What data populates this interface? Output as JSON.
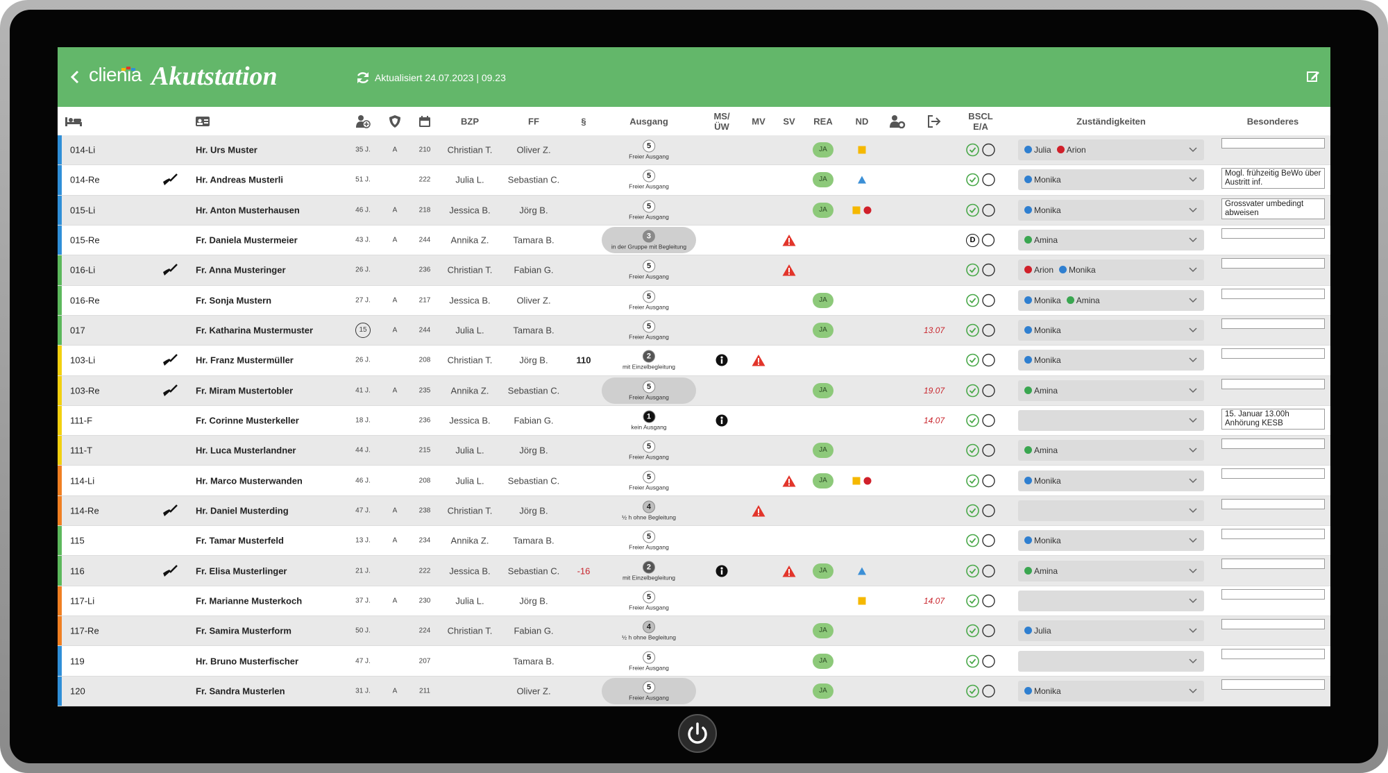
{
  "header": {
    "logo": "clienia",
    "title": "Akutstation",
    "updated": "Aktualisiert 24.07.2023 | 09.23"
  },
  "columns": {
    "bzp": "BZP",
    "ff": "FF",
    "para": "§",
    "ausgang": "Ausgang",
    "ms": "MS/\nÜW",
    "mv": "MV",
    "sv": "SV",
    "rea": "REA",
    "nd": "ND",
    "bscl": "BSCL\nE/A",
    "resp": "Zuständigkeiten",
    "note": "Besonderes"
  },
  "rows": [
    {
      "stripe": "#2f8fd8",
      "bed": "014-Li",
      "name": "Hr. Urs Muster",
      "age": "35 J.",
      "a": "A",
      "room": 210,
      "bzp": "Christian T.",
      "ff": "Oliver Z.",
      "ausgang": {
        "level": 5,
        "text": "Freier Ausgang"
      },
      "rea": "JA",
      "nd": [
        "square"
      ],
      "resp": [
        {
          "name": "Julia",
          "color": "#2f7fd0"
        },
        {
          "name": "Arion",
          "color": "#d0202a"
        }
      ]
    },
    {
      "stripe": "#2f8fd8",
      "bed": "014-Re",
      "sweep": true,
      "name": "Hr. Andreas Musterli",
      "age": "51 J.",
      "room": 222,
      "bzp": "Julia L.",
      "ff": "Sebastian C.",
      "ausgang": {
        "level": 5,
        "text": "Freier Ausgang"
      },
      "rea": "JA",
      "nd": [
        "triangle"
      ],
      "resp": [
        {
          "name": "Monika",
          "color": "#2f7fd0"
        }
      ],
      "note": "Mogl. frühzeitig BeWo über Austritt inf."
    },
    {
      "stripe": "#2f8fd8",
      "bed": "015-Li",
      "name": "Hr. Anton Musterhausen",
      "age": "46 J.",
      "a": "A",
      "room": 218,
      "bzp": "Jessica B.",
      "ff": "Jörg B.",
      "ausgang": {
        "level": 5,
        "text": "Freier Ausgang"
      },
      "rea": "JA",
      "nd": [
        "square",
        "circle"
      ],
      "resp": [
        {
          "name": "Monika",
          "color": "#2f7fd0"
        }
      ],
      "note": "Grossvater umbedingt abweisen"
    },
    {
      "stripe": "#2f8fd8",
      "bed": "015-Re",
      "name": "Fr. Daniela Mustermeier",
      "age": "43 J.",
      "a": "A",
      "room": 244,
      "bzp": "Annika Z.",
      "ff": "Tamara B.",
      "ausgang": {
        "level": 3,
        "text": "in der Gruppe mit Begleitung",
        "highlight": true
      },
      "sv": true,
      "bscl": "D",
      "resp": [
        {
          "name": "Amina",
          "color": "#3aa650"
        }
      ]
    },
    {
      "stripe": "#5cb85c",
      "bed": "016-Li",
      "sweep": true,
      "name": "Fr. Anna Musteringer",
      "age": "26 J.",
      "room": 236,
      "bzp": "Christian T.",
      "ff": "Fabian G.",
      "ausgang": {
        "level": 5,
        "text": "Freier Ausgang"
      },
      "sv": true,
      "resp": [
        {
          "name": "Arion",
          "color": "#d0202a"
        },
        {
          "name": "Monika",
          "color": "#2f7fd0"
        }
      ]
    },
    {
      "stripe": "#5cb85c",
      "bed": "016-Re",
      "name": "Fr. Sonja Mustern",
      "age": "27 J.",
      "a": "A",
      "room": 217,
      "bzp": "Jessica B.",
      "ff": "Oliver Z.",
      "ausgang": {
        "level": 5,
        "text": "Freier Ausgang"
      },
      "rea": "JA",
      "resp": [
        {
          "name": "Monika",
          "color": "#2f7fd0"
        },
        {
          "name": "Amina",
          "color": "#3aa650"
        }
      ]
    },
    {
      "stripe": "#5cb85c",
      "bed": "017",
      "name": "Fr. Katharina Mustermuster",
      "age": "15",
      "age_circled": true,
      "a": "A",
      "room": 244,
      "bzp": "Julia L.",
      "ff": "Tamara B.",
      "ausgang": {
        "level": 5,
        "text": "Freier Ausgang"
      },
      "rea": "JA",
      "exit": "13.07",
      "resp": [
        {
          "name": "Monika",
          "color": "#2f7fd0"
        }
      ]
    },
    {
      "stripe": "#f2d00f",
      "bed": "103-Li",
      "sweep": true,
      "name": "Hr. Franz Mustermüller",
      "age": "26 J.",
      "room": 208,
      "bzp": "Christian T.",
      "ff": "Jörg B.",
      "para": 110,
      "ausgang": {
        "level": 2,
        "text": "mit Einzelbegleitung"
      },
      "ms": true,
      "mv": true,
      "resp": [
        {
          "name": "Monika",
          "color": "#2f7fd0"
        }
      ]
    },
    {
      "stripe": "#f2d00f",
      "bed": "103-Re",
      "sweep": true,
      "name": "Fr. Miram Mustertobler",
      "age": "41 J.",
      "a": "A",
      "room": 235,
      "bzp": "Annika Z.",
      "ff": "Sebastian C.",
      "ausgang": {
        "level": 5,
        "text": "Freier Ausgang",
        "highlight": true
      },
      "rea": "JA",
      "exit": "19.07",
      "resp": [
        {
          "name": "Amina",
          "color": "#3aa650"
        }
      ]
    },
    {
      "stripe": "#f2d00f",
      "bed": "111-F",
      "name": "Fr. Corinne Musterkeller",
      "age": "18 J.",
      "room": 236,
      "bzp": "Jessica B.",
      "ff": "Fabian G.",
      "ausgang": {
        "level": 1,
        "text": "kein Ausgang"
      },
      "ms": true,
      "exit": "14.07",
      "resp": [],
      "note": "15. Januar 13.00h Anhörung KESB"
    },
    {
      "stripe": "#f2d00f",
      "bed": "111-T",
      "name": "Hr. Luca Musterlandner",
      "age": "44 J.",
      "room": 215,
      "bzp": "Julia L.",
      "ff": "Jörg B.",
      "ausgang": {
        "level": 5,
        "text": "Freier Ausgang"
      },
      "rea": "JA",
      "resp": [
        {
          "name": "Amina",
          "color": "#3aa650"
        }
      ]
    },
    {
      "stripe": "#f07f22",
      "bed": "114-Li",
      "name": "Hr. Marco Musterwanden",
      "age": "46 J.",
      "room": 208,
      "bzp": "Julia L.",
      "ff": "Sebastian C.",
      "ausgang": {
        "level": 5,
        "text": "Freier Ausgang"
      },
      "sv": true,
      "rea": "JA",
      "nd": [
        "square",
        "circle"
      ],
      "resp": [
        {
          "name": "Monika",
          "color": "#2f7fd0"
        }
      ]
    },
    {
      "stripe": "#f07f22",
      "bed": "114-Re",
      "sweep": true,
      "name": "Hr. Daniel Musterding",
      "age": "47 J.",
      "a": "A",
      "room": 238,
      "bzp": "Christian T.",
      "ff": "Jörg B.",
      "ausgang": {
        "level": 4,
        "text": "½ h ohne Begleitung"
      },
      "mv": true,
      "resp": []
    },
    {
      "stripe": "#5cb85c",
      "bed": "115",
      "name": "Fr. Tamar Musterfeld",
      "age": "13 J.",
      "a": "A",
      "room": 234,
      "bzp": "Annika Z.",
      "ff": "Tamara B.",
      "ausgang": {
        "level": 5,
        "text": "Freier Ausgang"
      },
      "resp": [
        {
          "name": "Monika",
          "color": "#2f7fd0"
        }
      ]
    },
    {
      "stripe": "#5cb85c",
      "bed": "116",
      "sweep": true,
      "name": "Fr. Elisa Musterlinger",
      "age": "21 J.",
      "room": 222,
      "bzp": "Jessica B.",
      "ff": "Sebastian C.",
      "para": -16,
      "ausgang": {
        "level": 2,
        "text": "mit Einzelbegleitung"
      },
      "ms": true,
      "sv": true,
      "rea": "JA",
      "nd": [
        "triangle"
      ],
      "resp": [
        {
          "name": "Amina",
          "color": "#3aa650"
        }
      ]
    },
    {
      "stripe": "#f07f22",
      "bed": "117-Li",
      "name": "Fr. Marianne Musterkoch",
      "age": "37 J.",
      "a": "A",
      "room": 230,
      "bzp": "Julia L.",
      "ff": "Jörg B.",
      "ausgang": {
        "level": 5,
        "text": "Freier Ausgang"
      },
      "nd": [
        "square"
      ],
      "exit": "14.07",
      "resp": []
    },
    {
      "stripe": "#f07f22",
      "bed": "117-Re",
      "name": "Fr. Samira Musterform",
      "age": "50 J.",
      "room": 224,
      "bzp": "Christian T.",
      "ff": "Fabian G.",
      "ausgang": {
        "level": 4,
        "text": "½ h ohne Begleitung"
      },
      "rea": "JA",
      "resp": [
        {
          "name": "Julia",
          "color": "#2f7fd0"
        }
      ]
    },
    {
      "stripe": "#2f8fd8",
      "bed": "119",
      "name": "Hr. Bruno Musterfischer",
      "age": "47 J.",
      "room": 207,
      "ff": "Tamara B.",
      "ausgang": {
        "level": 5,
        "text": "Freier Ausgang"
      },
      "rea": "JA",
      "resp": []
    },
    {
      "stripe": "#2f8fd8",
      "bed": "120",
      "name": "Fr. Sandra Musterlen",
      "age": "31 J.",
      "a": "A",
      "room": 211,
      "ff": "Oliver Z.",
      "ausgang": {
        "level": 5,
        "text": "Freier Ausgang",
        "highlight": true
      },
      "rea": "JA",
      "resp": [
        {
          "name": "Monika",
          "color": "#2f7fd0"
        }
      ]
    }
  ]
}
